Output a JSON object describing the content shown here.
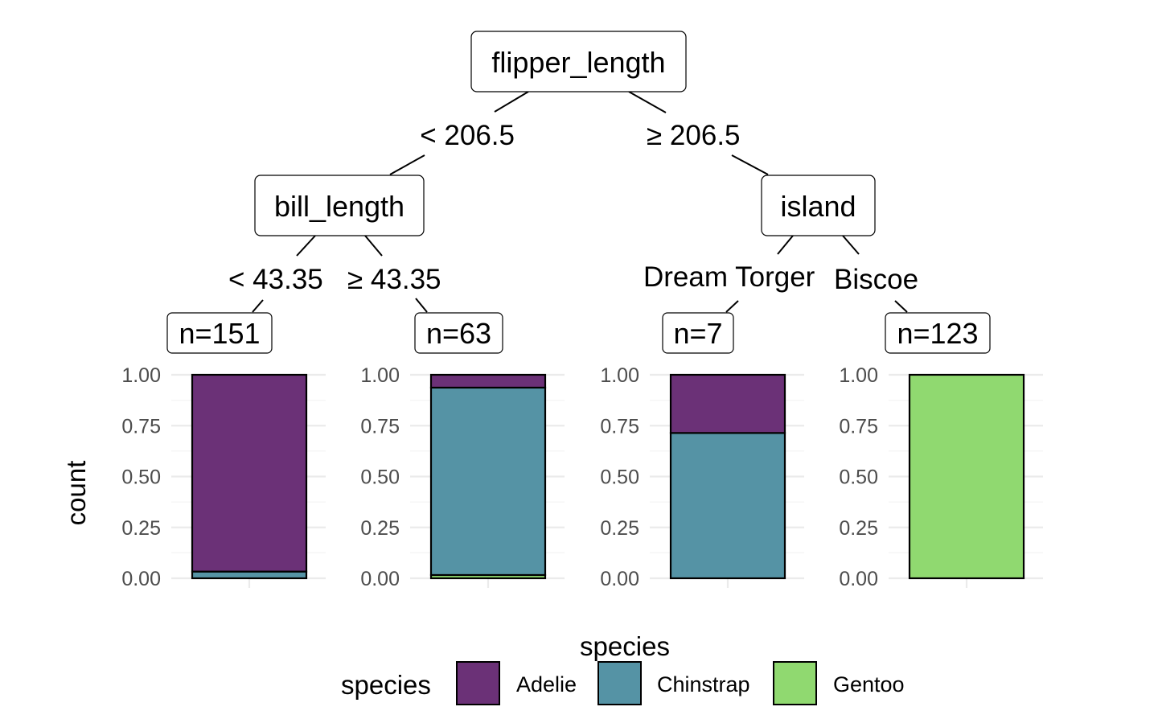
{
  "tree": {
    "root": {
      "label": "flipper_length"
    },
    "left_split": {
      "label": "< 206.5"
    },
    "right_split": {
      "label": "≥ 206.5"
    },
    "left_node": {
      "label": "bill_length"
    },
    "right_node": {
      "label": "island"
    },
    "ll_split": {
      "label": "< 43.35"
    },
    "lr_split": {
      "label": "≥ 43.35"
    },
    "rl_split": {
      "label": "Dream Torger"
    },
    "rr_split": {
      "label": "Biscoe"
    }
  },
  "leaves": [
    {
      "count_label": "n=151"
    },
    {
      "count_label": "n=63"
    },
    {
      "count_label": "n=7"
    },
    {
      "count_label": "n=123"
    }
  ],
  "y_axis": {
    "title": "count",
    "ticks": [
      "1.00",
      "0.75",
      "0.50",
      "0.25",
      "0.00"
    ]
  },
  "legend": {
    "top_title": "species",
    "title": "species",
    "placement": "bottom",
    "items": [
      {
        "label": "Adelie",
        "color": "#6b3177"
      },
      {
        "label": "Chinstrap",
        "color": "#5593a5"
      },
      {
        "label": "Gentoo",
        "color": "#90d970"
      }
    ]
  },
  "chart_data": {
    "type": "bar",
    "stacked": true,
    "ylabel": "count",
    "ylim": [
      0,
      1
    ],
    "categories": [
      "n=151",
      "n=63",
      "n=7",
      "n=123"
    ],
    "series": [
      {
        "name": "Adelie",
        "color": "#6b3177",
        "values": [
          0.967,
          0.063,
          0.286,
          0
        ]
      },
      {
        "name": "Chinstrap",
        "color": "#5593a5",
        "values": [
          0.033,
          0.921,
          0.714,
          0
        ]
      },
      {
        "name": "Gentoo",
        "color": "#90d970",
        "values": [
          0,
          0.016,
          0,
          1
        ]
      }
    ]
  }
}
